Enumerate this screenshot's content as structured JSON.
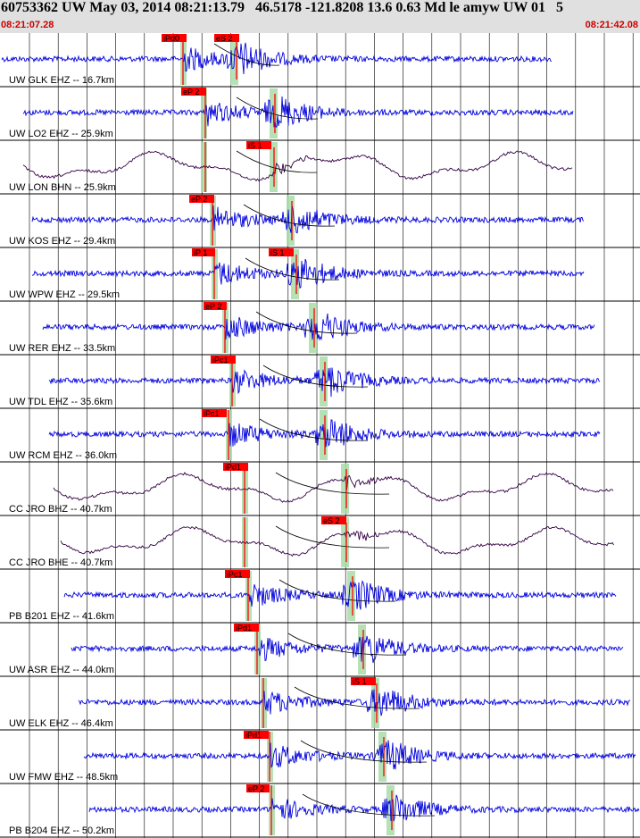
{
  "header": {
    "title": "60753362 UW May 03, 2014 08:21:13.79   46.5178 -121.8208 13.6 0.63 Md le amyw UW 01   5",
    "start_time": "08:21:07.28",
    "end_time": "08:21:42.08"
  },
  "colors": {
    "trace_main": "#0000dd",
    "trace_long_period": "#330044",
    "pick_box": "#ff0000",
    "window_band": "#a8dca8",
    "grid": "#000000",
    "header_bg": "#e0e0e0",
    "time_text": "#cc0000"
  },
  "channels": [
    {
      "label": "UW GLK EHZ -- 16.7km",
      "picks": [
        "iPd0",
        "eS 2"
      ],
      "type": "short"
    },
    {
      "label": "UW LO2 EHZ -- 25.9km",
      "picks": [
        "eP 2"
      ],
      "type": "short"
    },
    {
      "label": "UW LON BHN -- 25.9km",
      "picks": [
        "iS 1"
      ],
      "type": "long"
    },
    {
      "label": "UW KOS EHZ -- 29.4km",
      "picks": [
        "eP 2"
      ],
      "type": "short"
    },
    {
      "label": "UW WPW EHZ -- 29.5km",
      "picks": [
        "iP 1",
        "iS 1"
      ],
      "type": "short"
    },
    {
      "label": "UW RER EHZ -- 33.5km",
      "picks": [
        "eP 2"
      ],
      "type": "short"
    },
    {
      "label": "UW TDL EHZ -- 35.6km",
      "picks": [
        "iPc1"
      ],
      "type": "short"
    },
    {
      "label": "UW RCM EHZ -- 36.0km",
      "picks": [
        "iPc1"
      ],
      "type": "short"
    },
    {
      "label": "CC JRO BHZ -- 40.7km",
      "picks": [
        "iPd1"
      ],
      "type": "long"
    },
    {
      "label": "CC JRO BHE -- 40.7km",
      "picks": [
        "eS 2"
      ],
      "type": "long"
    },
    {
      "label": "PB B201 EHZ -- 41.6km",
      "picks": [
        "iPc1"
      ],
      "type": "short"
    },
    {
      "label": "UW ASR EHZ -- 44.0km",
      "picks": [
        "iPd1"
      ],
      "type": "short"
    },
    {
      "label": "UW ELK EHZ -- 46.4km",
      "picks": [
        "iS 1"
      ],
      "type": "short"
    },
    {
      "label": "UW FMW EHZ -- 48.5km",
      "picks": [
        "iPd1"
      ],
      "type": "short"
    },
    {
      "label": "PB B204 EHZ -- 50.2km",
      "picks": [
        "eP 2"
      ],
      "type": "short"
    }
  ]
}
